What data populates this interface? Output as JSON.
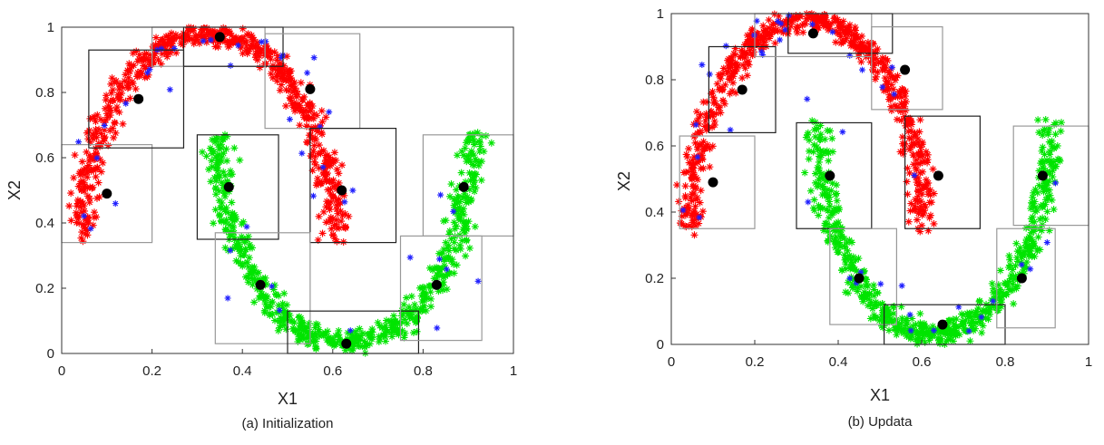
{
  "chart_data": [
    {
      "type": "scatter",
      "caption": "(a) Initialization",
      "xlabel": "X1",
      "ylabel": "X2",
      "xlim": [
        0,
        1
      ],
      "ylim": [
        0,
        1
      ],
      "xticks": [
        "0",
        "0.2",
        "0.4",
        "0.6",
        "0.8",
        "1"
      ],
      "yticks": [
        "0",
        "0.2",
        "0.4",
        "0.6",
        "0.8",
        "1"
      ],
      "grid": false,
      "series_colors": {
        "upper_moon": "#ff0000",
        "lower_moon": "#00e400",
        "noise": "#1f1fff",
        "centers": "#000000"
      },
      "centers": [
        {
          "x": 0.1,
          "y": 0.49
        },
        {
          "x": 0.17,
          "y": 0.78
        },
        {
          "x": 0.35,
          "y": 0.97
        },
        {
          "x": 0.55,
          "y": 0.81
        },
        {
          "x": 0.62,
          "y": 0.5
        },
        {
          "x": 0.37,
          "y": 0.51
        },
        {
          "x": 0.44,
          "y": 0.21
        },
        {
          "x": 0.63,
          "y": 0.03
        },
        {
          "x": 0.83,
          "y": 0.21
        },
        {
          "x": 0.89,
          "y": 0.51
        }
      ],
      "boxes": [
        {
          "x0": 0.0,
          "x1": 0.2,
          "y0": 0.34,
          "y1": 0.64,
          "shade": "light"
        },
        {
          "x0": 0.06,
          "x1": 0.27,
          "y0": 0.63,
          "y1": 0.93,
          "shade": "dark"
        },
        {
          "x0": 0.2,
          "x1": 0.45,
          "y0": 0.88,
          "y1": 1.0,
          "shade": "light"
        },
        {
          "x0": 0.27,
          "x1": 0.49,
          "y0": 0.88,
          "y1": 1.0,
          "shade": "dark"
        },
        {
          "x0": 0.45,
          "x1": 0.66,
          "y0": 0.69,
          "y1": 0.98,
          "shade": "light"
        },
        {
          "x0": 0.55,
          "x1": 0.74,
          "y0": 0.34,
          "y1": 0.69,
          "shade": "dark"
        },
        {
          "x0": 0.3,
          "x1": 0.48,
          "y0": 0.35,
          "y1": 0.67,
          "shade": "dark"
        },
        {
          "x0": 0.34,
          "x1": 0.55,
          "y0": 0.03,
          "y1": 0.37,
          "shade": "light"
        },
        {
          "x0": 0.5,
          "x1": 0.79,
          "y0": 0.0,
          "y1": 0.13,
          "shade": "dark"
        },
        {
          "x0": 0.75,
          "x1": 0.93,
          "y0": 0.04,
          "y1": 0.36,
          "shade": "light"
        },
        {
          "x0": 0.8,
          "x1": 1.0,
          "y0": 0.36,
          "y1": 0.67,
          "shade": "light"
        }
      ]
    },
    {
      "type": "scatter",
      "caption": "(b) Updata",
      "xlabel": "X1",
      "ylabel": "X2",
      "xlim": [
        0,
        1
      ],
      "ylim": [
        0,
        1
      ],
      "xticks": [
        "0",
        "0.2",
        "0.4",
        "0.6",
        "0.8",
        "1"
      ],
      "yticks": [
        "0",
        "0.2",
        "0.4",
        "0.6",
        "0.8",
        "1"
      ],
      "grid": false,
      "series_colors": {
        "upper_moon": "#ff0000",
        "lower_moon": "#00e400",
        "noise": "#1f1fff",
        "centers": "#000000"
      },
      "centers": [
        {
          "x": 0.1,
          "y": 0.49
        },
        {
          "x": 0.17,
          "y": 0.77
        },
        {
          "x": 0.34,
          "y": 0.94
        },
        {
          "x": 0.56,
          "y": 0.83
        },
        {
          "x": 0.64,
          "y": 0.51
        },
        {
          "x": 0.38,
          "y": 0.51
        },
        {
          "x": 0.45,
          "y": 0.2
        },
        {
          "x": 0.65,
          "y": 0.06
        },
        {
          "x": 0.84,
          "y": 0.2
        },
        {
          "x": 0.89,
          "y": 0.51
        }
      ],
      "boxes": [
        {
          "x0": 0.02,
          "x1": 0.2,
          "y0": 0.35,
          "y1": 0.63,
          "shade": "light"
        },
        {
          "x0": 0.09,
          "x1": 0.25,
          "y0": 0.64,
          "y1": 0.9,
          "shade": "dark"
        },
        {
          "x0": 0.2,
          "x1": 0.48,
          "y0": 0.87,
          "y1": 1.0,
          "shade": "light"
        },
        {
          "x0": 0.28,
          "x1": 0.53,
          "y0": 0.88,
          "y1": 1.0,
          "shade": "dark"
        },
        {
          "x0": 0.48,
          "x1": 0.65,
          "y0": 0.71,
          "y1": 0.96,
          "shade": "light"
        },
        {
          "x0": 0.56,
          "x1": 0.74,
          "y0": 0.35,
          "y1": 0.69,
          "shade": "dark"
        },
        {
          "x0": 0.3,
          "x1": 0.48,
          "y0": 0.35,
          "y1": 0.67,
          "shade": "dark"
        },
        {
          "x0": 0.38,
          "x1": 0.54,
          "y0": 0.06,
          "y1": 0.35,
          "shade": "light"
        },
        {
          "x0": 0.51,
          "x1": 0.8,
          "y0": 0.0,
          "y1": 0.12,
          "shade": "dark"
        },
        {
          "x0": 0.78,
          "x1": 0.92,
          "y0": 0.05,
          "y1": 0.35,
          "shade": "light"
        },
        {
          "x0": 0.82,
          "x1": 1.0,
          "y0": 0.36,
          "y1": 0.66,
          "shade": "light"
        }
      ]
    }
  ]
}
